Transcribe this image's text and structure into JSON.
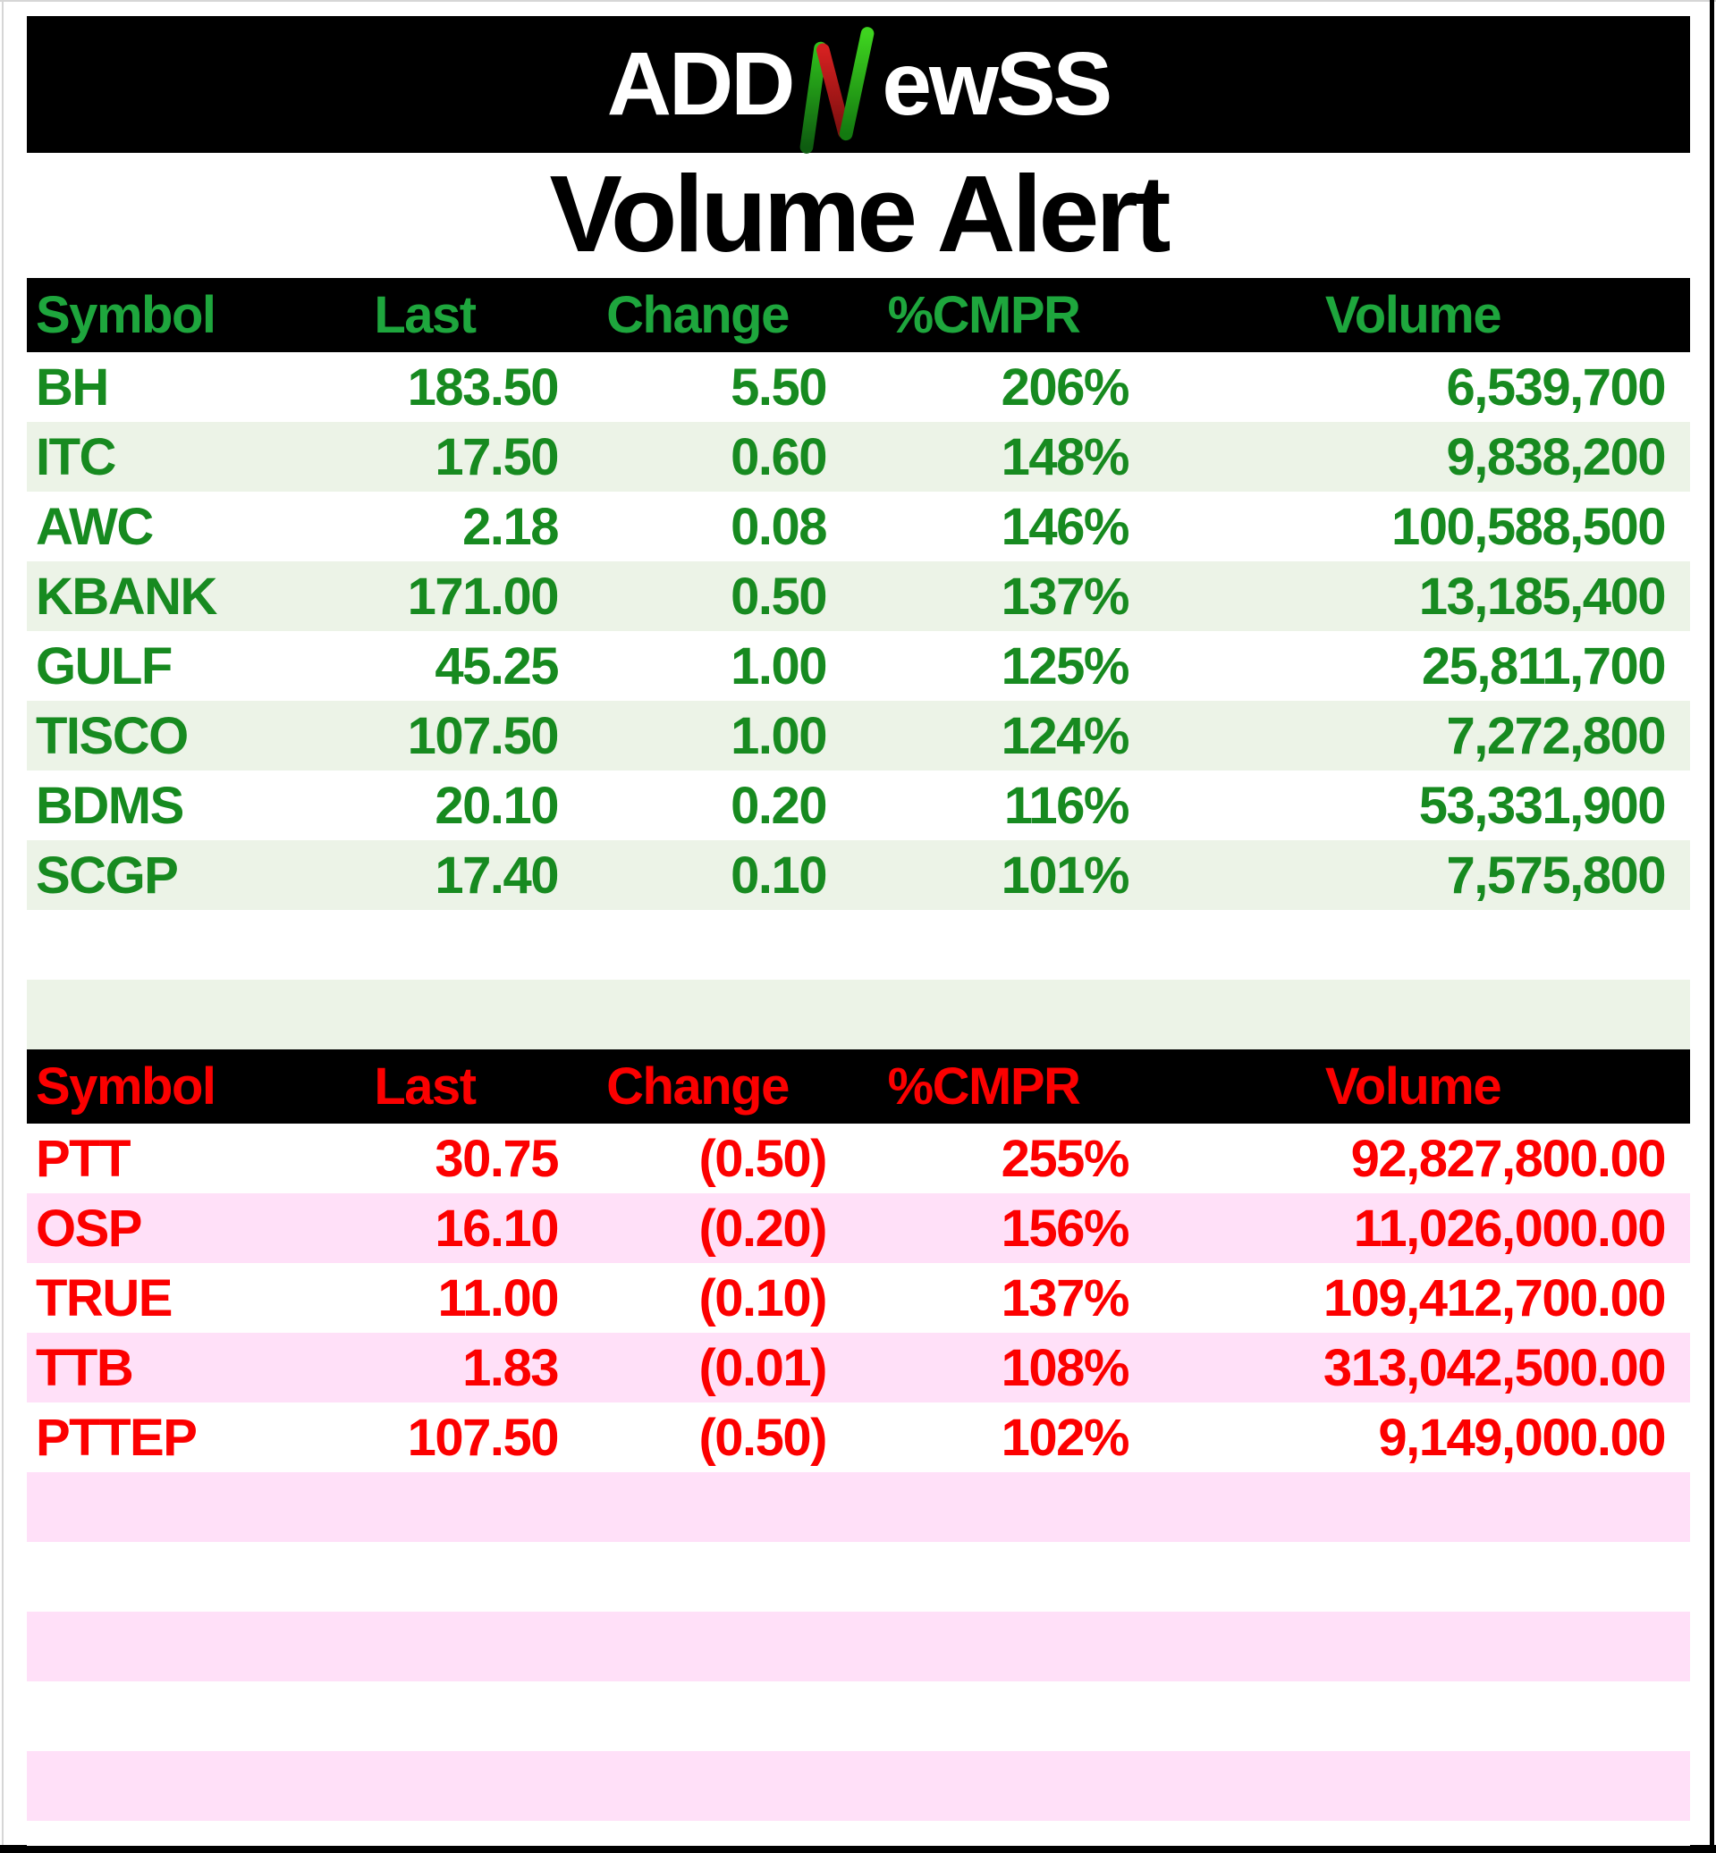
{
  "logo": {
    "prefix": "ADD",
    "n_letter": "N",
    "suffix": "ewSS"
  },
  "title": "Volume Alert",
  "colors": {
    "gainer_header_text": "#1EA63D",
    "gainer_body_text": "#178A20",
    "gainer_stripe_bg": "#ECF3E7",
    "loser_header_text": "#FC0000",
    "loser_body_text": "#FC0000",
    "loser_stripe_bg": "#FFE0F8",
    "header_bar_bg": "#000000",
    "logo_n_green": "#2FBF1C",
    "logo_n_red": "#C61B1B"
  },
  "gainers": {
    "columns": [
      "Symbol",
      "Last",
      "Change",
      "%CMPR",
      "Volume"
    ],
    "rows": [
      {
        "symbol": "BH",
        "last": "183.50",
        "change": "5.50",
        "cmpr": "206%",
        "volume": "6,539,700"
      },
      {
        "symbol": "ITC",
        "last": "17.50",
        "change": "0.60",
        "cmpr": "148%",
        "volume": "9,838,200"
      },
      {
        "symbol": "AWC",
        "last": "2.18",
        "change": "0.08",
        "cmpr": "146%",
        "volume": "100,588,500"
      },
      {
        "symbol": "KBANK",
        "last": "171.00",
        "change": "0.50",
        "cmpr": "137%",
        "volume": "13,185,400"
      },
      {
        "symbol": "GULF",
        "last": "45.25",
        "change": "1.00",
        "cmpr": "125%",
        "volume": "25,811,700"
      },
      {
        "symbol": "TISCO",
        "last": "107.50",
        "change": "1.00",
        "cmpr": "124%",
        "volume": "7,272,800"
      },
      {
        "symbol": "BDMS",
        "last": "20.10",
        "change": "0.20",
        "cmpr": "116%",
        "volume": "53,331,900"
      },
      {
        "symbol": "SCGP",
        "last": "17.40",
        "change": "0.10",
        "cmpr": "101%",
        "volume": "7,575,800"
      }
    ],
    "empty_rows": 2
  },
  "losers": {
    "columns": [
      "Symbol",
      "Last",
      "Change",
      "%CMPR",
      "Volume"
    ],
    "rows": [
      {
        "symbol": "PTT",
        "last": "30.75",
        "change": "(0.50)",
        "cmpr": "255%",
        "volume": "92,827,800.00"
      },
      {
        "symbol": "OSP",
        "last": "16.10",
        "change": "(0.20)",
        "cmpr": "156%",
        "volume": "11,026,000.00"
      },
      {
        "symbol": "TRUE",
        "last": "11.00",
        "change": "(0.10)",
        "cmpr": "137%",
        "volume": "109,412,700.00"
      },
      {
        "symbol": "TTB",
        "last": "1.83",
        "change": "(0.01)",
        "cmpr": "108%",
        "volume": "313,042,500.00"
      },
      {
        "symbol": "PTTEP",
        "last": "107.50",
        "change": "(0.50)",
        "cmpr": "102%",
        "volume": "9,149,000.00"
      }
    ],
    "empty_rows": 5
  },
  "chart_data": [
    {
      "type": "table",
      "title": "Volume Alert - gainers",
      "columns": [
        "Symbol",
        "Last",
        "Change",
        "%CMPR",
        "Volume"
      ],
      "rows": [
        [
          "BH",
          183.5,
          5.5,
          "206%",
          6539700
        ],
        [
          "ITC",
          17.5,
          0.6,
          "148%",
          9838200
        ],
        [
          "AWC",
          2.18,
          0.08,
          "146%",
          100588500
        ],
        [
          "KBANK",
          171.0,
          0.5,
          "137%",
          13185400
        ],
        [
          "GULF",
          45.25,
          1.0,
          "125%",
          25811700
        ],
        [
          "TISCO",
          107.5,
          1.0,
          "124%",
          7272800
        ],
        [
          "BDMS",
          20.1,
          0.2,
          "116%",
          53331900
        ],
        [
          "SCGP",
          17.4,
          0.1,
          "101%",
          7575800
        ]
      ]
    },
    {
      "type": "table",
      "title": "Volume Alert - losers",
      "columns": [
        "Symbol",
        "Last",
        "Change",
        "%CMPR",
        "Volume"
      ],
      "rows": [
        [
          "PTT",
          30.75,
          -0.5,
          "255%",
          92827800.0
        ],
        [
          "OSP",
          16.1,
          -0.2,
          "156%",
          11026000.0
        ],
        [
          "TRUE",
          11.0,
          -0.1,
          "137%",
          109412700.0
        ],
        [
          "TTB",
          1.83,
          -0.01,
          "108%",
          313042500.0
        ],
        [
          "PTTEP",
          107.5,
          -0.5,
          "102%",
          9149000.0
        ]
      ]
    }
  ]
}
